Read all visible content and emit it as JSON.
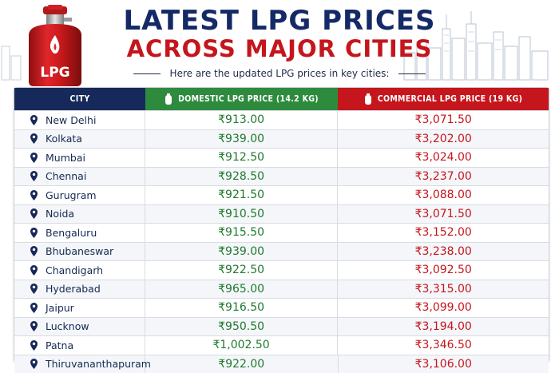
{
  "header": {
    "title_line1": "LATEST LPG PRICES",
    "title_line2": "ACROSS MAJOR CITIES",
    "subtitle": "Here are the updated LPG prices in key cities:",
    "cylinder_label": "LPG"
  },
  "table": {
    "columns": {
      "city": "CITY",
      "domestic": "DOMESTIC LPG PRICE (14.2 KG)",
      "commercial": "COMMERCIAL LPG PRICE (19 KG)"
    },
    "rows": [
      {
        "city": "New Delhi",
        "domestic": "₹913.00",
        "commercial": "₹3,071.50"
      },
      {
        "city": "Kolkata",
        "domestic": "₹939.00",
        "commercial": "₹3,202.00"
      },
      {
        "city": "Mumbai",
        "domestic": "₹912.50",
        "commercial": "₹3,024.00"
      },
      {
        "city": "Chennai",
        "domestic": "₹928.50",
        "commercial": "₹3,237.00"
      },
      {
        "city": "Gurugram",
        "domestic": "₹921.50",
        "commercial": "₹3,088.00"
      },
      {
        "city": "Noida",
        "domestic": "₹910.50",
        "commercial": "₹3,071.50"
      },
      {
        "city": "Bengaluru",
        "domestic": "₹915.50",
        "commercial": "₹3,152.00"
      },
      {
        "city": "Bhubaneswar",
        "domestic": "₹939.00",
        "commercial": "₹3,238.00"
      },
      {
        "city": "Chandigarh",
        "domestic": "₹922.50",
        "commercial": "₹3,092.50"
      },
      {
        "city": "Hyderabad",
        "domestic": "₹965.00",
        "commercial": "₹3,315.00"
      },
      {
        "city": "Jaipur",
        "domestic": "₹916.50",
        "commercial": "₹3,099.00"
      },
      {
        "city": "Lucknow",
        "domestic": "₹950.50",
        "commercial": "₹3,194.00"
      },
      {
        "city": "Patna",
        "domestic": "₹1,002.50",
        "commercial": "₹3,346.50"
      },
      {
        "city": "Thiruvananthapuram",
        "domestic": "₹922.00",
        "commercial": "₹3,106.00"
      }
    ]
  },
  "icons": {
    "cylinder": "gas-cylinder-icon",
    "pin": "location-pin-icon",
    "skyline": "city-skyline-icon"
  },
  "colors": {
    "navy": "#16295a",
    "green": "#2e8b3e",
    "red": "#c4161c"
  }
}
